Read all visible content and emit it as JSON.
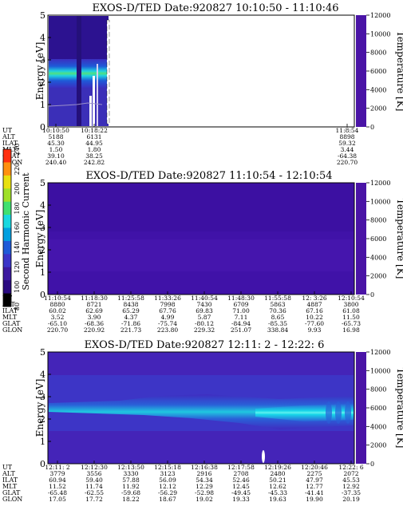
{
  "colorbar": {
    "label": "Second Harmonic Current",
    "ticks": [
      "80",
      "100",
      "120",
      "140",
      "160",
      "180",
      "200",
      "220",
      "240"
    ],
    "colors": [
      "#000000",
      "#2a0a80",
      "#3d1aa0",
      "#3b35c8",
      "#1e5ad8",
      "#00a0e0",
      "#18d8e0",
      "#40e070",
      "#a0e028",
      "#e8e010",
      "#ff9010",
      "#ff3010"
    ]
  },
  "chart_data": [
    {
      "type": "heatmap",
      "title": "EXOS-D/TED   Date:920827  10:10:50 - 11:10:46",
      "ylabel": "Energy [eV]",
      "ylabel_right": "Temperature [K]",
      "ylim": [
        0,
        5
      ],
      "ylim_right": [
        0,
        12000
      ],
      "yticks": [
        "0",
        "1",
        "2",
        "3",
        "4",
        "5"
      ],
      "yticks_right": [
        "0",
        "2000",
        "4000",
        "6000",
        "8000",
        "10000",
        "12000"
      ],
      "x_ticks": [
        "10:10:50",
        "10:18:22",
        "11:8:54"
      ],
      "table": {
        "UT": [
          "10:10:50",
          "10:18:22",
          "11:8:54"
        ],
        "ALT": [
          "5188",
          "6131",
          "8898"
        ],
        "ILAT": [
          "45.30",
          "44.95",
          "59.32"
        ],
        "MLT": [
          "1.50",
          "1.80",
          "3.44"
        ],
        "GLAT": [
          "39.10",
          "38.25",
          "-64.38"
        ],
        "GLON": [
          "240.40",
          "242.82",
          "220.70"
        ]
      },
      "notes": "data present only from about 10:10:50 to 10:22; bright band near 2.3-2.8 eV"
    },
    {
      "type": "heatmap",
      "title": "EXOS-D/TED   Date:920827  11:10:54 - 12:10:54",
      "ylabel": "Energy [eV]",
      "ylabel_right": "Temperature [K]",
      "ylim": [
        0,
        5
      ],
      "ylim_right": [
        0,
        12000
      ],
      "yticks": [
        "0",
        "1",
        "2",
        "3",
        "4",
        "5"
      ],
      "yticks_right": [
        "0",
        "2000",
        "4000",
        "6000",
        "8000",
        "10000",
        "12000"
      ],
      "x_ticks": [
        "11:10:54",
        "11:18:30",
        "11:25:58",
        "11:33:26",
        "11:40:54",
        "11:48:30",
        "11:55:58",
        "12: 3:26",
        "12:10:54"
      ],
      "table": {
        "UT": [
          "11:10:54",
          "11:18:30",
          "11:25:58",
          "11:33:26",
          "11:40:54",
          "11:48:30",
          "11:55:58",
          "12: 3:26",
          "12:10:54"
        ],
        "ALT": [
          "8880",
          "8721",
          "8438",
          "7998",
          "7430",
          "6709",
          "5863",
          "4887",
          "3800"
        ],
        "ILAT": [
          "60.02",
          "62.69",
          "65.29",
          "67.76",
          "69.83",
          "71.00",
          "70.36",
          "67.16",
          "61.08"
        ],
        "MLT": [
          "3.52",
          "3.90",
          "4.37",
          "4.99",
          "5.87",
          "7.11",
          "8.65",
          "10.22",
          "11.50"
        ],
        "GLAT": [
          "-65.10",
          "-68.36",
          "-71.86",
          "-75.74",
          "-80.12",
          "-84.94",
          "-85.35",
          "-77.60",
          "-65.73"
        ],
        "GLON": [
          "220.70",
          "220.92",
          "221.73",
          "223.80",
          "229.32",
          "251.07",
          "338.84",
          "9.93",
          "16.98"
        ]
      }
    },
    {
      "type": "heatmap",
      "title": "EXOS-D/TED   Date:920827  12:11: 2 - 12:22: 6",
      "ylabel": "Energy [eV]",
      "ylabel_right": "Temperature [K]",
      "ylim": [
        0,
        5
      ],
      "ylim_right": [
        0,
        12000
      ],
      "yticks": [
        "0",
        "1",
        "2",
        "3",
        "4",
        "5"
      ],
      "yticks_right": [
        "0",
        "2000",
        "4000",
        "6000",
        "8000",
        "10000",
        "12000"
      ],
      "x_ticks": [
        "12:11: 2",
        "12:12:30",
        "12:13:50",
        "12:15:18",
        "12:16:38",
        "12:17:58",
        "12:19:26",
        "12:20:46",
        "12:22: 6"
      ],
      "table": {
        "UT": [
          "12:11: 2",
          "12:12:30",
          "12:13:50",
          "12:15:18",
          "12:16:38",
          "12:17:58",
          "12:19:26",
          "12:20:46",
          "12:22: 6"
        ],
        "ALT": [
          "3779",
          "3556",
          "3330",
          "3123",
          "2916",
          "2708",
          "2480",
          "2275",
          "2072"
        ],
        "ILAT": [
          "60.94",
          "59.40",
          "57.88",
          "56.09",
          "54.34",
          "52.46",
          "50.21",
          "47.97",
          "45.53"
        ],
        "MLT": [
          "11.52",
          "11.74",
          "11.92",
          "12.12",
          "12.29",
          "12.45",
          "12.62",
          "12.77",
          "12.92"
        ],
        "GLAT": [
          "-65.48",
          "-62.55",
          "-59.68",
          "-56.29",
          "-52.98",
          "-49.45",
          "-45.33",
          "-41.41",
          "-37.35"
        ],
        "GLON": [
          "17.05",
          "17.72",
          "18.22",
          "18.67",
          "19.02",
          "19.33",
          "19.63",
          "19.90",
          "20.19"
        ]
      },
      "notes": "bright band centered near 2.2-2.7 eV strengthening toward later times"
    }
  ]
}
